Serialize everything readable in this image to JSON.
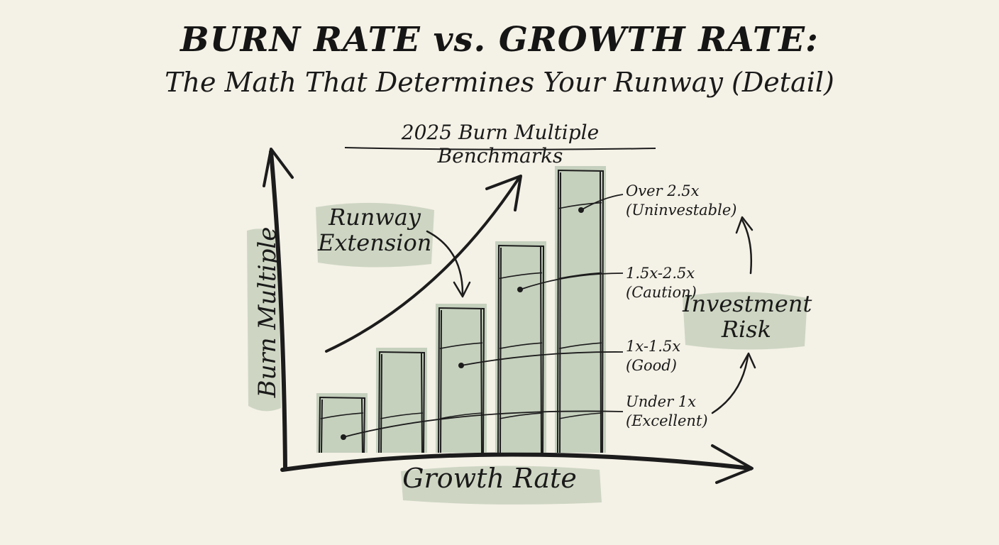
{
  "title": "BURN RATE vs. GROWTH RATE:",
  "subtitle": "The Math That Determines Your Runway (Detail)",
  "chart_data": {
    "type": "bar",
    "title": "2025 Burn Multiple Benchmarks",
    "xlabel": "Growth Rate",
    "ylabel": "Burn Multiple",
    "grid": false,
    "legend": "none",
    "bar_count": 5,
    "tiers": [
      {
        "range": "Under 1x",
        "rating": "(Excellent)"
      },
      {
        "range": "1x-1.5x",
        "rating": "(Good)"
      },
      {
        "range": "1.5x-2.5x",
        "rating": "(Caution)"
      },
      {
        "range": "Over 2.5x",
        "rating": "(Uninvestable)"
      }
    ],
    "annotations": {
      "runway": [
        "Runway",
        "Extension"
      ],
      "risk": [
        "Investment",
        "Risk"
      ]
    }
  },
  "colors": {
    "background": "#f4f1e6",
    "ink": "#1c1c1c",
    "wash": "#9fb59a"
  }
}
